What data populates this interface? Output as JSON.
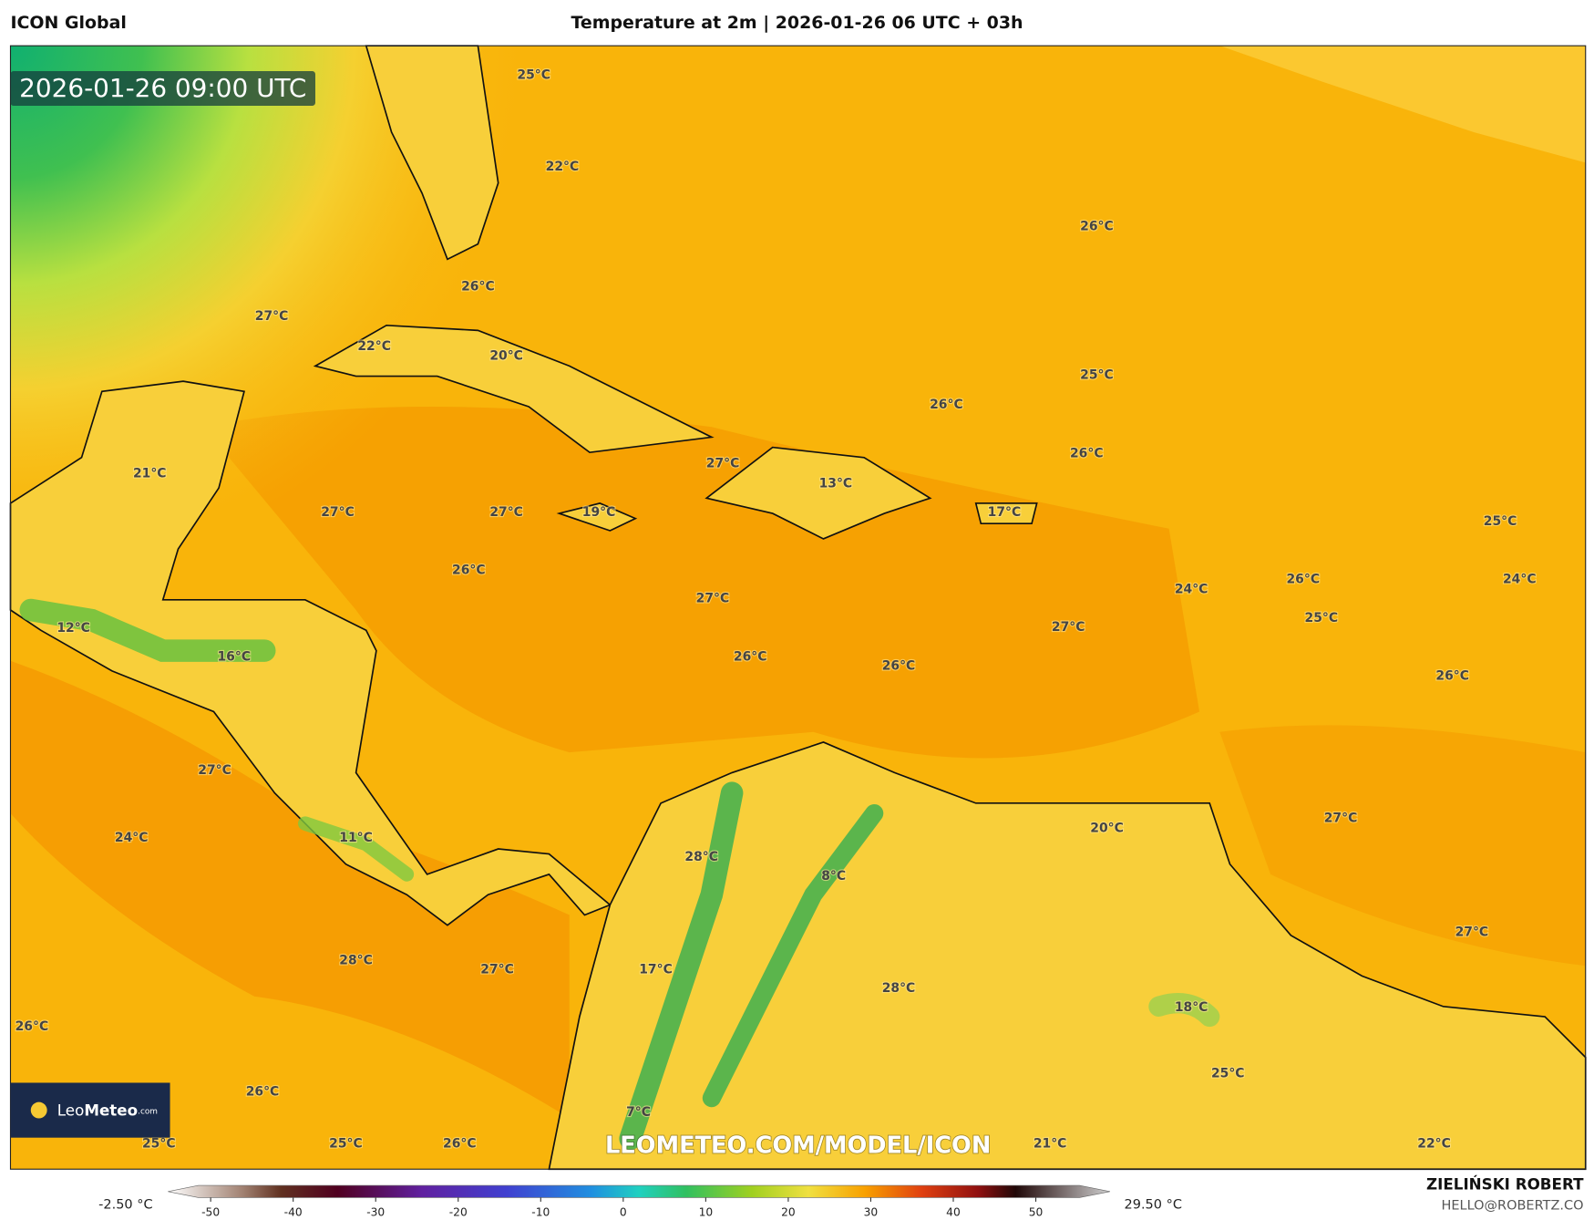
{
  "header": {
    "model": "ICON Global",
    "title": "Temperature at 2m | 2026-01-26 06 UTC + 03h"
  },
  "map": {
    "timestamp": "2026-01-26 09:00 UTC",
    "watermark": "LEOMETEO.COM/MODEL/ICON",
    "labels": [
      "25°C",
      "22°C",
      "26°C",
      "26°C",
      "27°C",
      "22°C",
      "20°C",
      "25°C",
      "26°C",
      "26°C",
      "27°C",
      "21°C",
      "13°C",
      "27°C",
      "27°C",
      "19°C",
      "17°C",
      "25°C",
      "26°C",
      "26°C",
      "24°C",
      "24°C",
      "27°C",
      "25°C",
      "27°C",
      "12°C",
      "16°C",
      "26°C",
      "26°C",
      "26°C",
      "27°C",
      "27°C",
      "20°C",
      "24°C",
      "11°C",
      "8°C",
      "28°C",
      "27°C",
      "28°C",
      "27°C",
      "17°C",
      "28°C",
      "18°C",
      "26°C",
      "25°C",
      "26°C",
      "7°C",
      "25°C",
      "25°C",
      "26°C",
      "21°C",
      "22°C"
    ]
  },
  "logo": {
    "name_light": "Leo",
    "name_bold": "Meteo",
    "suffix": ".com"
  },
  "colorbar": {
    "min_label": "-2.50 °C",
    "max_label": "29.50 °C",
    "ticks": [
      -50,
      -40,
      -30,
      -20,
      -10,
      0,
      10,
      20,
      30,
      40,
      50
    ]
  },
  "credit": {
    "author": "ZIELIŃSKI ROBERT",
    "email": "HELLO@ROBERTZ.CO"
  }
}
